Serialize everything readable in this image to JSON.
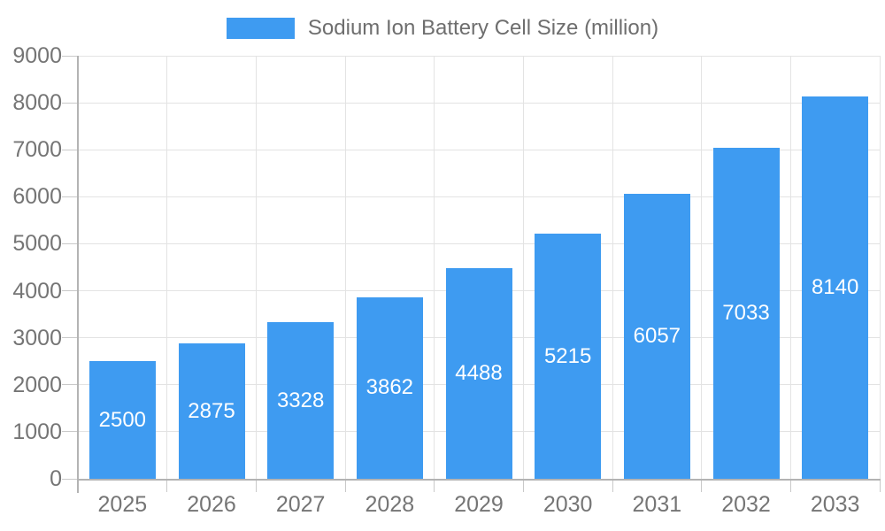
{
  "legend": {
    "label": "Sodium Ion Battery Cell Size (million)"
  },
  "chart_data": {
    "type": "bar",
    "title": "Sodium Ion Battery Cell Size (million)",
    "categories": [
      "2025",
      "2026",
      "2027",
      "2028",
      "2029",
      "2030",
      "2031",
      "2032",
      "2033"
    ],
    "series": [
      {
        "name": "Sodium Ion Battery Cell Size (million)",
        "values": [
          2500,
          2875,
          3328,
          3862,
          4488,
          5215,
          6057,
          7033,
          8140
        ]
      }
    ],
    "value_labels_shown": true,
    "value_label_position": "inside-center",
    "xlabel": "",
    "ylabel": "",
    "ylim": [
      0,
      9000
    ],
    "yticks": [
      0,
      1000,
      2000,
      3000,
      4000,
      5000,
      6000,
      7000,
      8000,
      9000
    ],
    "grid": true,
    "legend_position": "top-center",
    "colors": {
      "bar": "#3e9bf1",
      "axis_text": "#757575",
      "legend_text": "#6e6e6e",
      "gridline": "#e3e3e3",
      "axis_line": "#b3b3b3",
      "value_label_text": "#ffffff",
      "background": "#ffffff"
    }
  }
}
